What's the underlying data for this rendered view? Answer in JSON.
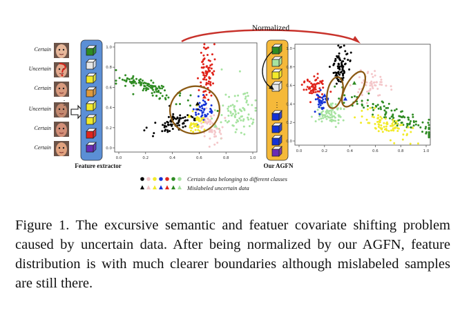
{
  "figure": {
    "arrow_label": "Normalized",
    "face_labels": [
      "Certain",
      "Uncertain",
      "Certain",
      "Uncertain",
      "Certain",
      "Certain"
    ],
    "extractor_label": "Feature extractor",
    "agfn_label": "Our AGFN",
    "legend": {
      "certain_text": "Certain data belonging to different classes",
      "uncertain_text": "Mislabeled uncertain data"
    },
    "class_colors": [
      "#000000",
      "#f4c6c9",
      "#f2ea2a",
      "#1432d6",
      "#e0241b",
      "#2e8b22",
      "#a6e3a0"
    ],
    "colors": {
      "extractor_fill": "#5b8fd6",
      "agfn_fill": "#f5b93a",
      "ellipse": "#8b5a14",
      "arrow": "#c8322b"
    },
    "left_plot": {
      "x_ticks": [
        "0.0",
        "0.2",
        "0.4",
        "0.6",
        "0.8",
        "1.0"
      ],
      "y_ticks": [
        "0.0",
        "0.2",
        "0.4",
        "0.6",
        "0.8",
        "1.0"
      ]
    },
    "right_plot": {
      "x_ticks": [
        "0.0",
        "0.2",
        "0.4",
        "0.6",
        "0.8",
        "1.0"
      ],
      "y_ticks": [
        "0.0",
        "0.2",
        "0.4",
        "0.6",
        "0.8",
        "1.0"
      ]
    }
  },
  "caption": {
    "text": "Figure 1.  The excursive semantic and featuer covariate shifting problem caused by uncertain data.  After being normalized by our AGFN, feature distribution is with much clearer boundaries although mislabeled samples are still there."
  }
}
